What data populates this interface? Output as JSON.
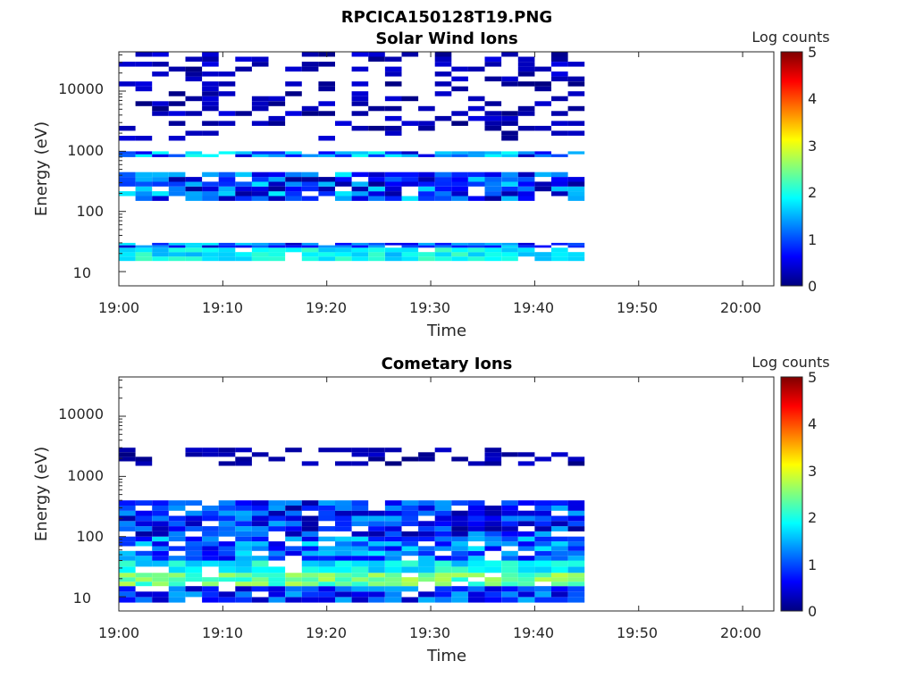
{
  "figure_title": "RPCICA150128T19.PNG",
  "colorscale": [
    "#00007f",
    "#0000ff",
    "#007fff",
    "#00ffff",
    "#7fff7f",
    "#ffff00",
    "#ff7f00",
    "#ff0000",
    "#7f0000"
  ],
  "chart_data": [
    {
      "type": "heatmap",
      "title": "Solar Wind Ions",
      "xlabel": "Time",
      "ylabel": "Energy (eV)",
      "xlim": [
        "19:00",
        "20:03"
      ],
      "ylim": [
        5.8,
        45000
      ],
      "y_scale": "log",
      "x_ticks": [
        "19:00",
        "19:10",
        "19:20",
        "19:30",
        "19:40",
        "19:50",
        "20:00"
      ],
      "y_ticks": [
        10,
        100,
        1000,
        10000
      ],
      "y_tick_labels": [
        "10",
        "100",
        "1000",
        "10000"
      ],
      "colorbar": {
        "label": "Log counts",
        "range": [
          0,
          5
        ],
        "ticks": [
          "0",
          "1",
          "2",
          "3",
          "4",
          "5"
        ]
      },
      "data_time_range": [
        "19:00",
        "19:44"
      ],
      "time_step_minutes": 1.6,
      "columns": 28,
      "summary": [
        {
          "energy_ev": "15-25",
          "log_counts": "1.5-2.2"
        },
        {
          "energy_ev": "25-30",
          "log_counts": "0.2-1.8"
        },
        {
          "energy_ev": "150-450",
          "log_counts": "0.1-1.8"
        },
        {
          "energy_ev": "800-1000",
          "log_counts": "0.2-2.0"
        },
        {
          "energy_ev": "1500-45000",
          "log_counts": "0-0.5"
        }
      ]
    },
    {
      "type": "heatmap",
      "title": "Cometary Ions",
      "xlabel": "Time",
      "ylabel": "Energy (eV)",
      "xlim": [
        "19:00",
        "20:03"
      ],
      "ylim": [
        5.8,
        45000
      ],
      "y_scale": "log",
      "x_ticks": [
        "19:00",
        "19:10",
        "19:20",
        "19:30",
        "19:40",
        "19:50",
        "20:00"
      ],
      "y_ticks": [
        10,
        100,
        1000,
        10000
      ],
      "y_tick_labels": [
        "10",
        "100",
        "1000",
        "10000"
      ],
      "colorbar": {
        "label": "Log counts",
        "range": [
          0,
          5
        ],
        "ticks": [
          "0",
          "1",
          "2",
          "3",
          "4",
          "5"
        ]
      },
      "data_time_range": [
        "19:00",
        "19:44"
      ],
      "time_step_minutes": 1.6,
      "columns": 28,
      "summary": [
        {
          "energy_ev": "8-15",
          "log_counts": "0.3-1.5"
        },
        {
          "energy_ev": "15-25",
          "log_counts": "2.0-2.8"
        },
        {
          "energy_ev": "25-40",
          "log_counts": "1.5-2.2"
        },
        {
          "energy_ev": "40-100",
          "log_counts": "0.5-1.8"
        },
        {
          "energy_ev": "100-400",
          "log_counts": "0.1-1.5"
        },
        {
          "energy_ev": "1500-3000",
          "log_counts": "0-0.4"
        }
      ]
    }
  ]
}
